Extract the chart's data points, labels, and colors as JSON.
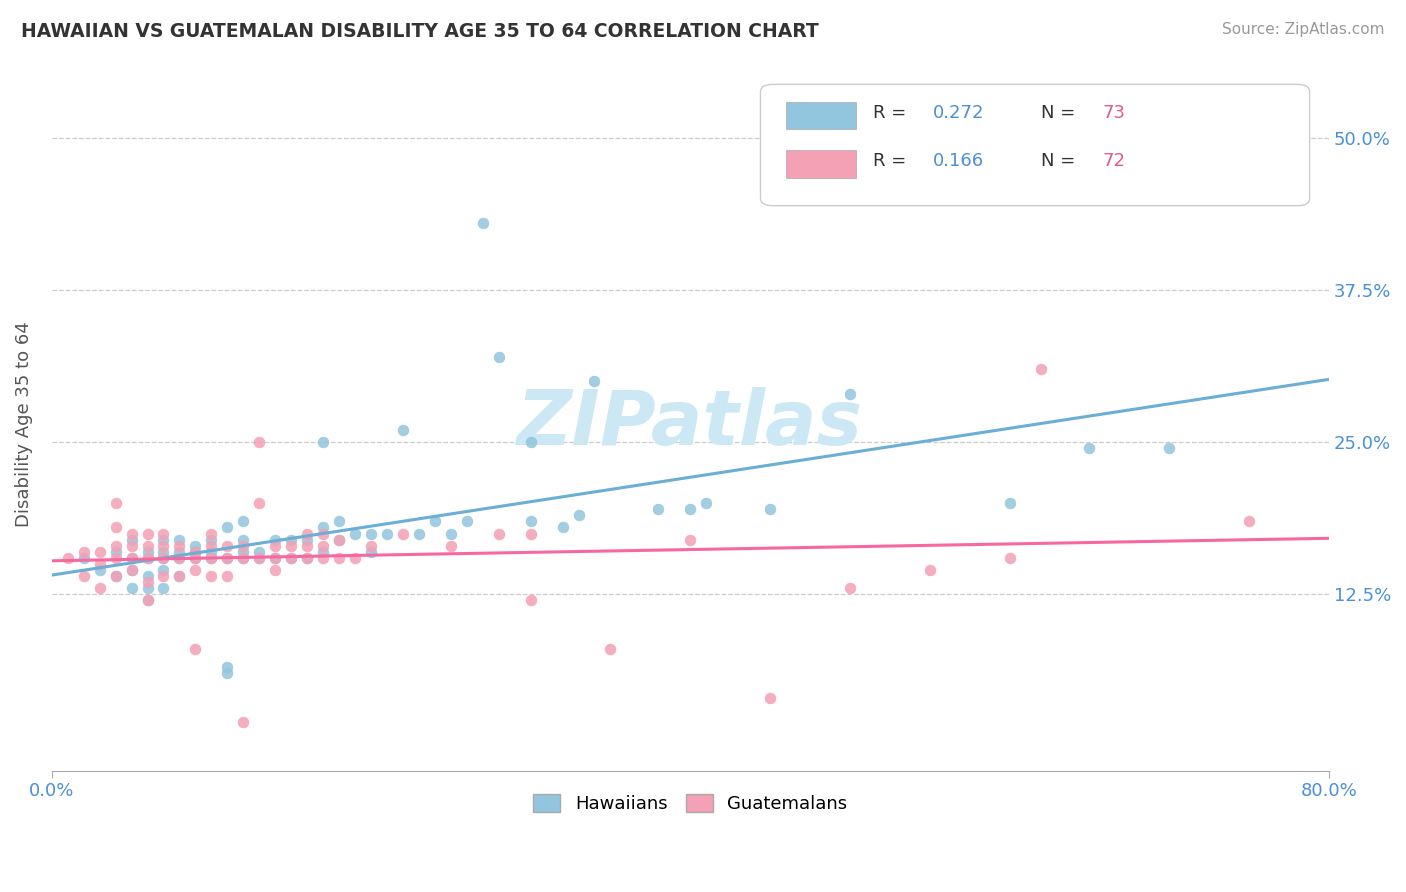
{
  "title": "HAWAIIAN VS GUATEMALAN DISABILITY AGE 35 TO 64 CORRELATION CHART",
  "source_text": "Source: ZipAtlas.com",
  "ylabel": "Disability Age 35 to 64",
  "xlim": [
    0.0,
    0.8
  ],
  "ylim": [
    -0.02,
    0.55
  ],
  "x_ticks": [
    0.0,
    0.8
  ],
  "x_tick_labels": [
    "0.0%",
    "80.0%"
  ],
  "y_ticks": [
    0.125,
    0.25,
    0.375,
    0.5
  ],
  "y_tick_labels": [
    "12.5%",
    "25.0%",
    "37.5%",
    "50.0%"
  ],
  "hawaiian_color": "#92c5de",
  "guatemalan_color": "#f4a0b5",
  "hawaiian_line_color": "#6baed6",
  "guatemalan_line_color": "#f768a1",
  "R_hawaiian": 0.272,
  "N_hawaiian": 73,
  "R_guatemalan": 0.166,
  "N_guatemalan": 72,
  "hawaiian_scatter": [
    [
      0.02,
      0.155
    ],
    [
      0.03,
      0.145
    ],
    [
      0.04,
      0.14
    ],
    [
      0.04,
      0.16
    ],
    [
      0.05,
      0.13
    ],
    [
      0.05,
      0.145
    ],
    [
      0.05,
      0.155
    ],
    [
      0.05,
      0.17
    ],
    [
      0.06,
      0.12
    ],
    [
      0.06,
      0.13
    ],
    [
      0.06,
      0.14
    ],
    [
      0.06,
      0.155
    ],
    [
      0.06,
      0.16
    ],
    [
      0.07,
      0.13
    ],
    [
      0.07,
      0.145
    ],
    [
      0.07,
      0.155
    ],
    [
      0.07,
      0.16
    ],
    [
      0.07,
      0.17
    ],
    [
      0.08,
      0.14
    ],
    [
      0.08,
      0.155
    ],
    [
      0.08,
      0.16
    ],
    [
      0.08,
      0.17
    ],
    [
      0.09,
      0.155
    ],
    [
      0.09,
      0.16
    ],
    [
      0.09,
      0.165
    ],
    [
      0.1,
      0.155
    ],
    [
      0.1,
      0.16
    ],
    [
      0.1,
      0.17
    ],
    [
      0.11,
      0.06
    ],
    [
      0.11,
      0.065
    ],
    [
      0.11,
      0.155
    ],
    [
      0.11,
      0.18
    ],
    [
      0.12,
      0.155
    ],
    [
      0.12,
      0.16
    ],
    [
      0.12,
      0.17
    ],
    [
      0.12,
      0.185
    ],
    [
      0.13,
      0.155
    ],
    [
      0.13,
      0.16
    ],
    [
      0.14,
      0.155
    ],
    [
      0.14,
      0.17
    ],
    [
      0.15,
      0.155
    ],
    [
      0.15,
      0.17
    ],
    [
      0.16,
      0.155
    ],
    [
      0.16,
      0.17
    ],
    [
      0.17,
      0.16
    ],
    [
      0.17,
      0.18
    ],
    [
      0.17,
      0.25
    ],
    [
      0.18,
      0.17
    ],
    [
      0.18,
      0.185
    ],
    [
      0.19,
      0.175
    ],
    [
      0.2,
      0.16
    ],
    [
      0.2,
      0.175
    ],
    [
      0.21,
      0.175
    ],
    [
      0.22,
      0.26
    ],
    [
      0.23,
      0.175
    ],
    [
      0.24,
      0.185
    ],
    [
      0.25,
      0.175
    ],
    [
      0.26,
      0.185
    ],
    [
      0.27,
      0.43
    ],
    [
      0.28,
      0.32
    ],
    [
      0.3,
      0.185
    ],
    [
      0.3,
      0.25
    ],
    [
      0.32,
      0.18
    ],
    [
      0.33,
      0.19
    ],
    [
      0.34,
      0.3
    ],
    [
      0.38,
      0.195
    ],
    [
      0.4,
      0.195
    ],
    [
      0.41,
      0.2
    ],
    [
      0.45,
      0.195
    ],
    [
      0.5,
      0.29
    ],
    [
      0.6,
      0.2
    ],
    [
      0.65,
      0.245
    ],
    [
      0.7,
      0.245
    ]
  ],
  "guatemalan_scatter": [
    [
      0.01,
      0.155
    ],
    [
      0.02,
      0.14
    ],
    [
      0.02,
      0.16
    ],
    [
      0.03,
      0.13
    ],
    [
      0.03,
      0.15
    ],
    [
      0.03,
      0.16
    ],
    [
      0.04,
      0.14
    ],
    [
      0.04,
      0.155
    ],
    [
      0.04,
      0.165
    ],
    [
      0.04,
      0.18
    ],
    [
      0.04,
      0.2
    ],
    [
      0.05,
      0.145
    ],
    [
      0.05,
      0.155
    ],
    [
      0.05,
      0.165
    ],
    [
      0.05,
      0.175
    ],
    [
      0.06,
      0.12
    ],
    [
      0.06,
      0.135
    ],
    [
      0.06,
      0.155
    ],
    [
      0.06,
      0.165
    ],
    [
      0.06,
      0.175
    ],
    [
      0.07,
      0.14
    ],
    [
      0.07,
      0.155
    ],
    [
      0.07,
      0.165
    ],
    [
      0.07,
      0.175
    ],
    [
      0.08,
      0.14
    ],
    [
      0.08,
      0.155
    ],
    [
      0.08,
      0.165
    ],
    [
      0.09,
      0.08
    ],
    [
      0.09,
      0.145
    ],
    [
      0.09,
      0.155
    ],
    [
      0.09,
      0.16
    ],
    [
      0.1,
      0.14
    ],
    [
      0.1,
      0.155
    ],
    [
      0.1,
      0.165
    ],
    [
      0.1,
      0.175
    ],
    [
      0.11,
      0.14
    ],
    [
      0.11,
      0.155
    ],
    [
      0.11,
      0.165
    ],
    [
      0.12,
      0.02
    ],
    [
      0.12,
      0.155
    ],
    [
      0.12,
      0.165
    ],
    [
      0.13,
      0.155
    ],
    [
      0.13,
      0.2
    ],
    [
      0.13,
      0.25
    ],
    [
      0.14,
      0.145
    ],
    [
      0.14,
      0.155
    ],
    [
      0.14,
      0.165
    ],
    [
      0.15,
      0.155
    ],
    [
      0.15,
      0.165
    ],
    [
      0.16,
      0.155
    ],
    [
      0.16,
      0.165
    ],
    [
      0.16,
      0.175
    ],
    [
      0.17,
      0.155
    ],
    [
      0.17,
      0.165
    ],
    [
      0.17,
      0.175
    ],
    [
      0.18,
      0.155
    ],
    [
      0.18,
      0.17
    ],
    [
      0.19,
      0.155
    ],
    [
      0.2,
      0.165
    ],
    [
      0.22,
      0.175
    ],
    [
      0.25,
      0.165
    ],
    [
      0.28,
      0.175
    ],
    [
      0.3,
      0.12
    ],
    [
      0.3,
      0.175
    ],
    [
      0.35,
      0.08
    ],
    [
      0.4,
      0.17
    ],
    [
      0.45,
      0.04
    ],
    [
      0.5,
      0.13
    ],
    [
      0.55,
      0.145
    ],
    [
      0.6,
      0.155
    ],
    [
      0.62,
      0.31
    ],
    [
      0.75,
      0.185
    ]
  ],
  "background_color": "#ffffff",
  "grid_color": "#cccccc",
  "watermark_text": "ZIPatlas",
  "watermark_color": "#cce8f4",
  "R_color": "#4a90d9",
  "N_color": "#e05c8a"
}
